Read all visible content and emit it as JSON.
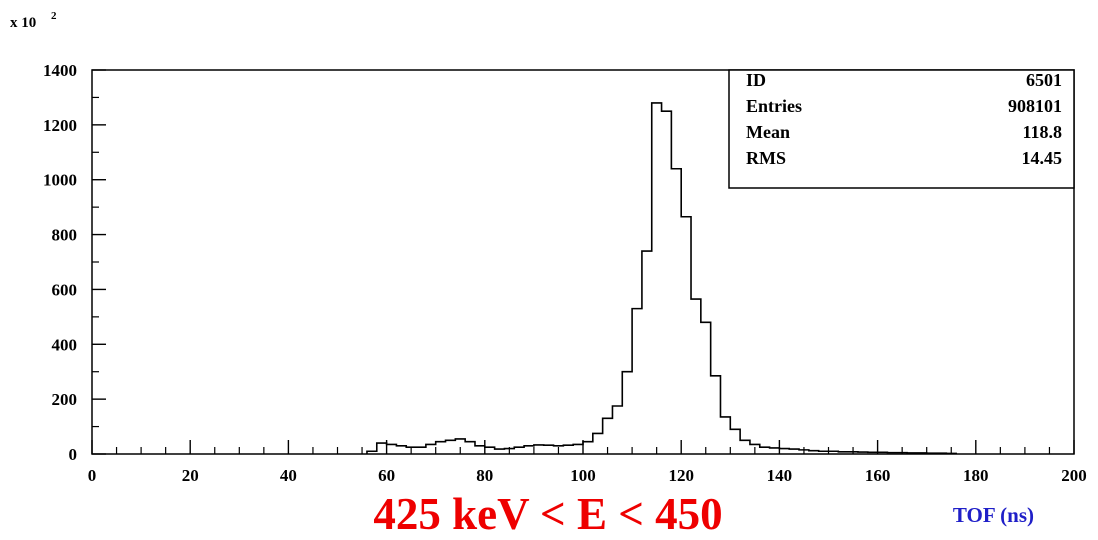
{
  "chart_data": {
    "type": "histogram",
    "multiplier_label": "x 10",
    "multiplier_exp": "2",
    "xlabel": "TOF (ns)",
    "xlim": [
      0,
      200
    ],
    "ylim": [
      0,
      1400
    ],
    "x_ticks": [
      0,
      20,
      40,
      60,
      80,
      100,
      120,
      140,
      160,
      180,
      200
    ],
    "y_ticks": [
      0,
      200,
      400,
      600,
      800,
      1000,
      1200,
      1400
    ],
    "bin_width": 2,
    "bin_start": 56,
    "values": [
      10,
      40,
      35,
      30,
      25,
      25,
      35,
      45,
      50,
      55,
      45,
      30,
      25,
      18,
      20,
      25,
      30,
      33,
      32,
      30,
      32,
      35,
      45,
      75,
      130,
      175,
      300,
      530,
      740,
      1280,
      1250,
      1040,
      865,
      565,
      480,
      285,
      135,
      90,
      50,
      35,
      25,
      22,
      20,
      18,
      15,
      12,
      10,
      10,
      8,
      8,
      7,
      6,
      6,
      5,
      5,
      4,
      4,
      3,
      3,
      2
    ],
    "stats": [
      {
        "label": "ID",
        "value": "6501"
      },
      {
        "label": "Entries",
        "value": "908101"
      },
      {
        "label": "Mean",
        "value": "118.8"
      },
      {
        "label": "RMS",
        "value": "14.45"
      }
    ],
    "annotation": "425 keV < E < 450",
    "colors": {
      "annotation": "#ee0000",
      "xlabel": "#1f1fc8",
      "line": "#000000"
    }
  }
}
